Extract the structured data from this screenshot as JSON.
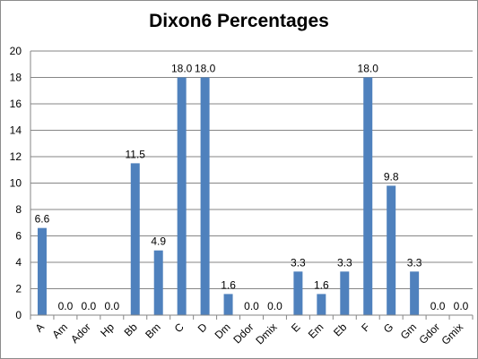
{
  "chart_data": {
    "type": "bar",
    "title": "Dixon6 Percentages",
    "categories": [
      "A",
      "Am",
      "Ador",
      "Hp",
      "Bb",
      "Bm",
      "C",
      "D",
      "Dm",
      "Ddor",
      "Dmix",
      "E",
      "Em",
      "Eb",
      "F",
      "G",
      "Gm",
      "Gdor",
      "Gmix"
    ],
    "values": [
      6.6,
      0.0,
      0.0,
      0.0,
      11.5,
      4.9,
      18.0,
      18.0,
      1.6,
      0.0,
      0.0,
      3.3,
      1.6,
      3.3,
      18.0,
      9.8,
      3.3,
      0.0,
      0.0
    ],
    "data_labels": [
      "6.6",
      "0.0",
      "0.0",
      "0.0",
      "11.5",
      "4.9",
      "18.0",
      "18.0",
      "1.6",
      "0.0",
      "0.0",
      "3.3",
      "1.6",
      "3.3",
      "18.0",
      "9.8",
      "3.3",
      "0.0",
      "0.0"
    ],
    "ylim": [
      0,
      20
    ],
    "yticks": [
      "0",
      "2",
      "4",
      "6",
      "8",
      "10",
      "12",
      "14",
      "16",
      "18",
      "20"
    ],
    "grid": true,
    "bar_color": "#4f81bd",
    "grid_color": "#868686",
    "xlabel": "",
    "ylabel": ""
  }
}
